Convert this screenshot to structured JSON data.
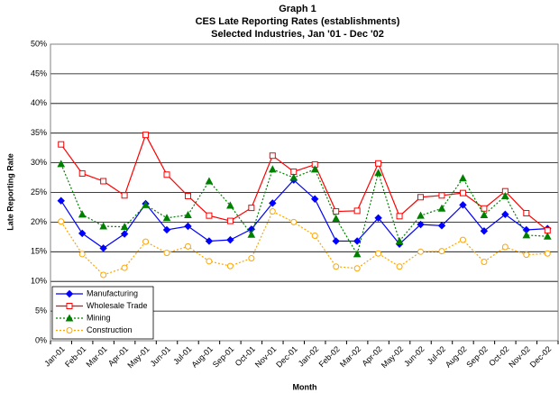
{
  "chart_data": {
    "type": "line",
    "title": "Graph 1",
    "subtitle": [
      "CES Late Reporting Rates (establishments)",
      "Selected Industries, Jan '01 - Dec '02"
    ],
    "x_label": "Month",
    "y_label": "Late Reporting Rate",
    "categories": [
      "Jan-01",
      "Feb-01",
      "Mar-01",
      "Apr-01",
      "May-01",
      "Jun-01",
      "Jul-01",
      "Aug-01",
      "Sep-01",
      "Oct-01",
      "Nov-01",
      "Dec-01",
      "Jan-02",
      "Feb-02",
      "Mar-02",
      "Apr-02",
      "May-02",
      "Jun-02",
      "Jul-02",
      "Aug-02",
      "Sep-02",
      "Oct-02",
      "Nov-02",
      "Dec-02"
    ],
    "series": [
      {
        "name": "Manufacturing",
        "color": "#0000ff",
        "marker": "diamond",
        "marker_fill": true,
        "line_style": "solid",
        "values": [
          23.6,
          18.1,
          15.6,
          18.0,
          23.1,
          18.7,
          19.3,
          16.8,
          17.0,
          18.8,
          23.2,
          27.1,
          23.9,
          16.8,
          16.8,
          20.7,
          16.3,
          19.6,
          19.4,
          22.9,
          18.5,
          21.3,
          18.7,
          18.9
        ]
      },
      {
        "name": "Wholesale Trade",
        "color": "#ff0000",
        "marker": "square",
        "marker_fill": false,
        "line_style": "solid",
        "values": [
          33.1,
          28.2,
          26.9,
          24.5,
          34.7,
          28.0,
          24.4,
          21.1,
          20.2,
          22.4,
          31.2,
          28.5,
          29.7,
          21.8,
          21.9,
          29.9,
          21.0,
          24.2,
          24.5,
          24.9,
          22.3,
          25.2,
          21.5,
          18.6
        ]
      },
      {
        "name": "Mining",
        "color": "#008000",
        "marker": "triangle",
        "marker_fill": true,
        "line_style": "dotted",
        "values": [
          29.8,
          21.3,
          19.3,
          19.2,
          22.9,
          20.7,
          21.2,
          26.9,
          22.8,
          17.9,
          28.9,
          27.5,
          28.9,
          20.6,
          14.6,
          28.3,
          16.8,
          21.1,
          22.3,
          27.4,
          21.2,
          24.4,
          17.8,
          17.6
        ]
      },
      {
        "name": "Construction",
        "color": "#ffa500",
        "marker": "circle",
        "marker_fill": false,
        "line_style": "dotted",
        "values": [
          20.1,
          14.6,
          11.1,
          12.3,
          16.7,
          14.8,
          15.9,
          13.4,
          12.6,
          13.9,
          21.8,
          20.0,
          17.7,
          12.5,
          12.2,
          14.7,
          12.5,
          15.0,
          15.1,
          17.0,
          13.3,
          15.8,
          14.5,
          14.7
        ]
      }
    ],
    "ylim": [
      0,
      50
    ],
    "yticks": [
      {
        "value": 0,
        "label": "0%"
      },
      {
        "value": 5,
        "label": "5%"
      },
      {
        "value": 10,
        "label": "10%"
      },
      {
        "value": 15,
        "label": "15%"
      },
      {
        "value": 20,
        "label": "20%"
      },
      {
        "value": 25,
        "label": "25%"
      },
      {
        "value": 30,
        "label": "30%"
      },
      {
        "value": 35,
        "label": "35%"
      },
      {
        "value": 40,
        "label": "40%"
      },
      {
        "value": 45,
        "label": "45%"
      },
      {
        "value": 50,
        "label": "50%"
      }
    ],
    "grid": true,
    "legend": "lower-left"
  }
}
